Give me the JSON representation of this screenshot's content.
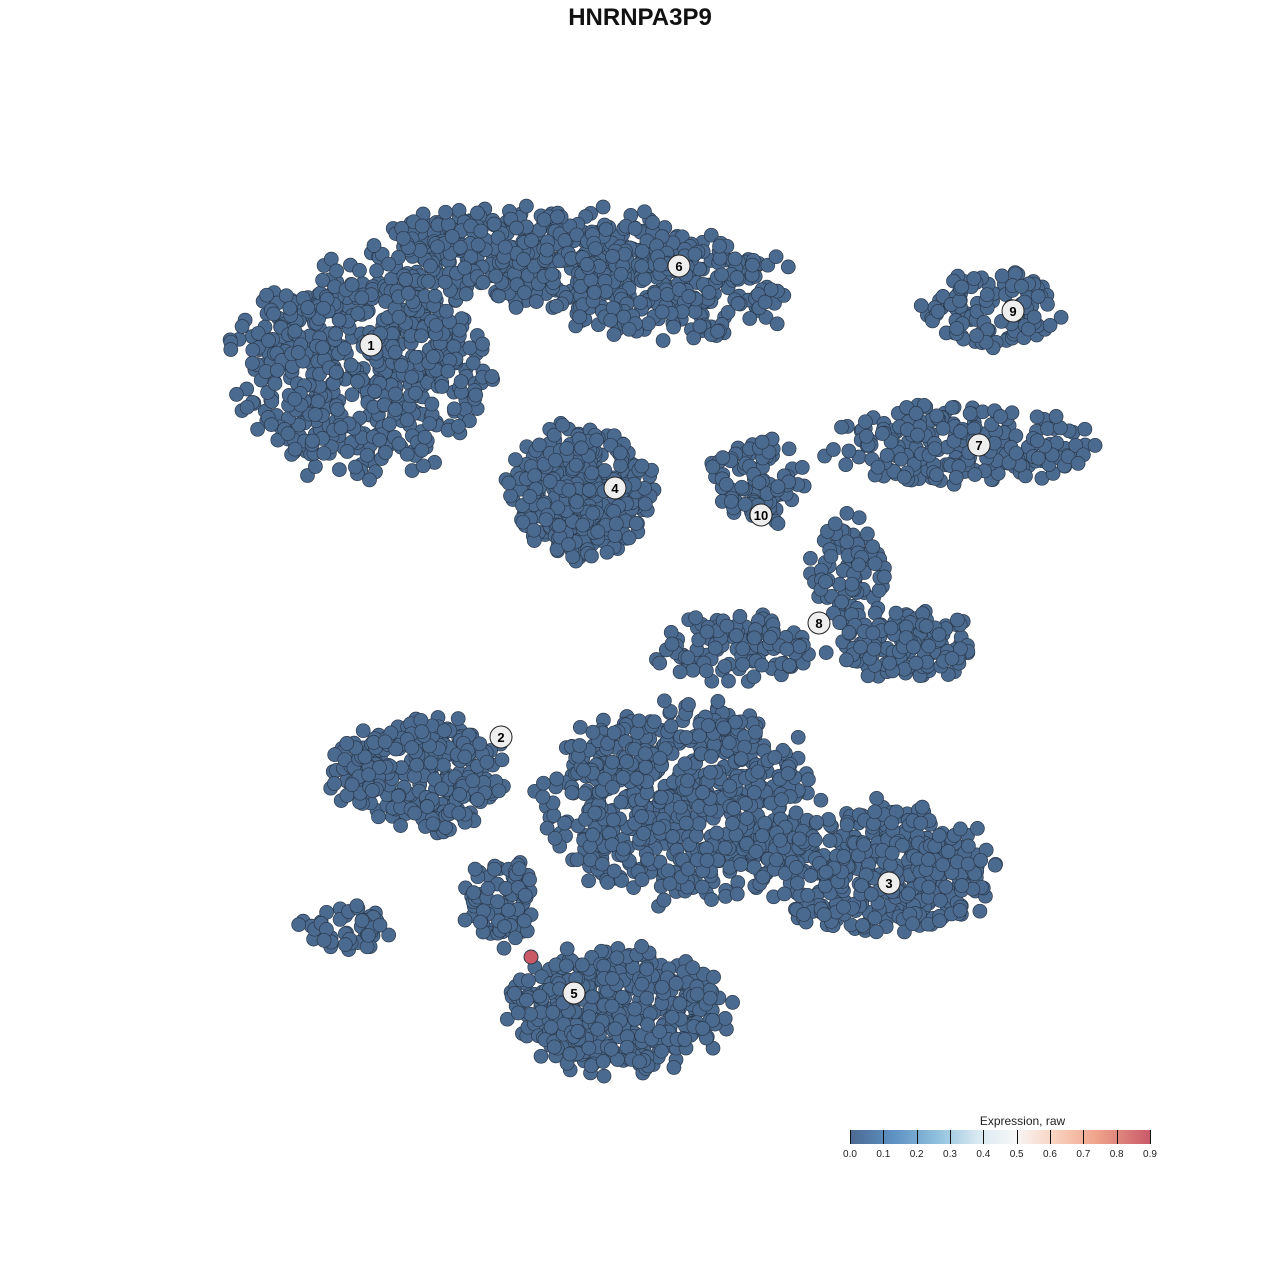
{
  "chart_data": {
    "type": "scatter",
    "title": "HNRNPA3P9",
    "xlabel": "",
    "ylabel": "",
    "grid": false,
    "point_color_default": "#4b6a8f",
    "point_stroke": "#2b3a4d",
    "cluster_labels": [
      "1",
      "2",
      "3",
      "4",
      "5",
      "6",
      "7",
      "8",
      "9",
      "10"
    ],
    "highlighted_points": [
      {
        "cluster": "5",
        "expression": 0.9,
        "color": "#c95a66"
      }
    ],
    "colorbar": {
      "title": "Expression, raw",
      "range": [
        0,
        0.9
      ],
      "ticks": [
        "0.0",
        "0.1",
        "0.2",
        "0.3",
        "0.4",
        "0.5",
        "0.6",
        "0.7",
        "0.8",
        "0.9"
      ],
      "colors": [
        "#4b6a92",
        "#f7f7f7",
        "#c95a6a"
      ],
      "placement": "bottom-right"
    }
  }
}
